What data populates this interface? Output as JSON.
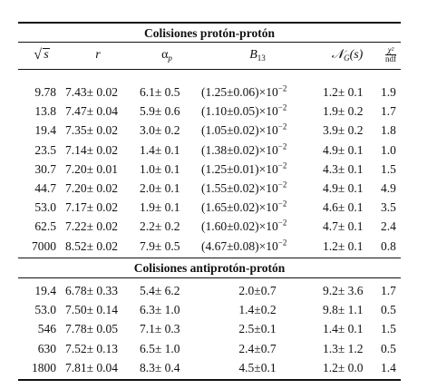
{
  "section_pp": {
    "title": "Colisiones protón-protón"
  },
  "header": {
    "sqrt_s": "√s",
    "sqrt_s_arg": "s",
    "r": "r",
    "alpha_p": "α",
    "alpha_p_sub": "p",
    "b13": "B",
    "b13_sub": "13",
    "ng": "𝒩",
    "ng_sub": "G",
    "ng_arg": "(s)",
    "chi_num": "χ²",
    "chi_den": "ndf"
  },
  "rows_pp": [
    {
      "s": "9.78",
      "r": "7.43± 0.02",
      "a": "6.1± 0.5",
      "b": "(1.25±0.06)×10",
      "bexp": "−2",
      "n": "1.2± 0.1",
      "x": "1.9"
    },
    {
      "s": "13.8",
      "r": "7.47± 0.04",
      "a": "5.9± 0.6",
      "b": "(1.10±0.05)×10",
      "bexp": "−2",
      "n": "1.9± 0.2",
      "x": "1.7"
    },
    {
      "s": "19.4",
      "r": "7.35± 0.02",
      "a": "3.0± 0.2",
      "b": "(1.05±0.02)×10",
      "bexp": "−2",
      "n": "3.9± 0.2",
      "x": "1.8"
    },
    {
      "s": "23.5",
      "r": "7.14± 0.02",
      "a": "1.4± 0.1",
      "b": "(1.38±0.02)×10",
      "bexp": "−2",
      "n": "4.9± 0.1",
      "x": "1.0"
    },
    {
      "s": "30.7",
      "r": "7.20± 0.01",
      "a": "1.0± 0.1",
      "b": "(1.25±0.01)×10",
      "bexp": "−2",
      "n": "4.3± 0.1",
      "x": "1.5"
    },
    {
      "s": "44.7",
      "r": "7.20± 0.02",
      "a": "2.0± 0.1",
      "b": "(1.55±0.02)×10",
      "bexp": "−2",
      "n": "4.9± 0.1",
      "x": "4.9"
    },
    {
      "s": "53.0",
      "r": "7.17± 0.02",
      "a": "1.9± 0.1",
      "b": "(1.65±0.02)×10",
      "bexp": "−2",
      "n": "4.6± 0.1",
      "x": "3.5"
    },
    {
      "s": "62.5",
      "r": "7.22± 0.02",
      "a": "2.2± 0.2",
      "b": "(1.60±0.02)×10",
      "bexp": "−2",
      "n": "4.7± 0.1",
      "x": "2.4"
    },
    {
      "s": "7000",
      "r": "8.52± 0.02",
      "a": "7.9± 0.5",
      "b": "(4.67±0.08)×10",
      "bexp": "−2",
      "n": "1.2± 0.1",
      "x": "0.8"
    }
  ],
  "section_ppbar": {
    "title": "Colisiones antiprotón-protón"
  },
  "rows_ppbar": [
    {
      "s": "19.4",
      "r": "6.78± 0.33",
      "a": "5.4± 6.2",
      "b": "2.0±0.7",
      "n": "9.2± 3.6",
      "x": "1.7"
    },
    {
      "s": "53.0",
      "r": "7.50± 0.14",
      "a": "6.3± 1.0",
      "b": "1.4±0.2",
      "n": "9.8± 1.1",
      "x": "0.5"
    },
    {
      "s": "546",
      "r": "7.78± 0.05",
      "a": "7.1± 0.3",
      "b": "2.5±0.1",
      "n": "1.4± 0.1",
      "x": "1.5"
    },
    {
      "s": "630",
      "r": "7.52± 0.13",
      "a": "6.5± 1.0",
      "b": "2.4±0.7",
      "n": "1.3± 1.2",
      "x": "0.5"
    },
    {
      "s": "1800",
      "r": "7.81± 0.04",
      "a": "8.3± 0.4",
      "b": "4.5±0.1",
      "n": "1.2± 0.0",
      "x": "1.4"
    }
  ]
}
